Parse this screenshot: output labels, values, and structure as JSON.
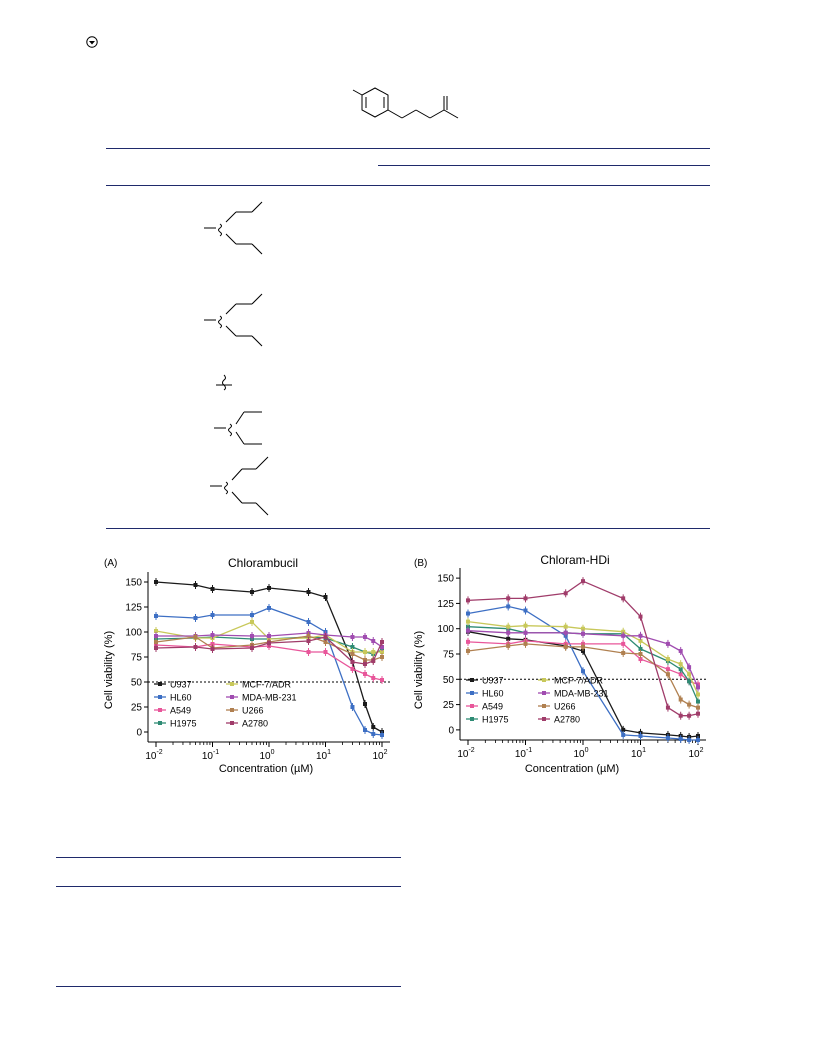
{
  "charts": [
    {
      "panel": "(A)",
      "title": "Chlorambucil",
      "xlabel": "Concentration (µM)",
      "ylabel": "Cell viability (%)"
    },
    {
      "panel": "(B)",
      "title": "Chloram-HDi",
      "xlabel": "Concentration (µM)",
      "ylabel": "Cell viability (%)"
    }
  ],
  "legend": [
    "U937",
    "MCF-7/ADR",
    "HL60",
    "MDA-MB-231",
    "A549",
    "U266",
    "H1975",
    "A2780"
  ],
  "colors": {
    "U937": "#1a1a1a",
    "HL60": "#3d6fc4",
    "A549": "#e8569a",
    "H1975": "#2e8b74",
    "MCF-7/ADR": "#c8c85a",
    "MDA-MB-231": "#a04cb0",
    "U266": "#b08050",
    "A2780": "#a03c6a",
    "rule": "#1f2a6b"
  },
  "chart_data": [
    {
      "type": "line",
      "title": "Chlorambucil",
      "xlabel": "Concentration (µM)",
      "ylabel": "Cell viability (%)",
      "x_scale": "log",
      "xlim": [
        0.01,
        100
      ],
      "ylim": [
        -10,
        160
      ],
      "y_ticks": [
        0,
        25,
        50,
        75,
        100,
        125,
        150
      ],
      "x_ticks": [
        "10-2",
        "10-1",
        "100",
        "101",
        "102"
      ],
      "reference_line": 50,
      "x": [
        0.01,
        0.05,
        0.1,
        0.5,
        1,
        5,
        10,
        30,
        50,
        70,
        100
      ],
      "series": [
        {
          "name": "U937",
          "values": [
            150,
            147,
            143,
            140,
            144,
            140,
            135,
            70,
            28,
            5,
            0
          ]
        },
        {
          "name": "HL60",
          "values": [
            116,
            114,
            117,
            117,
            124,
            110,
            100,
            25,
            2,
            -2,
            -3
          ]
        },
        {
          "name": "A549",
          "values": [
            87,
            85,
            88,
            85,
            86,
            80,
            80,
            63,
            58,
            54,
            52
          ]
        },
        {
          "name": "H1975",
          "values": [
            93,
            94,
            95,
            93,
            93,
            95,
            94,
            85,
            80,
            78,
            82
          ]
        },
        {
          "name": "MCF-7/ADR",
          "values": [
            101,
            94,
            94,
            110,
            93,
            94,
            97,
            80,
            80,
            80,
            80
          ]
        },
        {
          "name": "MDA-MB-231",
          "values": [
            96,
            96,
            97,
            96,
            96,
            99,
            97,
            95,
            95,
            91,
            85
          ]
        },
        {
          "name": "U266",
          "values": [
            90,
            95,
            84,
            87,
            90,
            96,
            90,
            78,
            72,
            72,
            75
          ]
        },
        {
          "name": "A2780",
          "values": [
            84,
            85,
            83,
            84,
            89,
            91,
            95,
            70,
            68,
            71,
            90
          ]
        }
      ]
    },
    {
      "type": "line",
      "title": "Chloram-HDi",
      "xlabel": "Concentration (µM)",
      "ylabel": "Cell viability (%)",
      "x_scale": "log",
      "xlim": [
        0.01,
        100
      ],
      "ylim": [
        -10,
        160
      ],
      "y_ticks": [
        0,
        25,
        50,
        75,
        100,
        125,
        150
      ],
      "x_ticks": [
        "10-2",
        "10-1",
        "100",
        "101",
        "102"
      ],
      "reference_line": 50,
      "x": [
        0.01,
        0.05,
        0.1,
        0.5,
        1,
        5,
        10,
        30,
        50,
        70,
        100
      ],
      "series": [
        {
          "name": "U937",
          "values": [
            97,
            90,
            89,
            83,
            78,
            0,
            -3,
            -5,
            -6,
            -7,
            -6
          ]
        },
        {
          "name": "HL60",
          "values": [
            115,
            122,
            118,
            93,
            58,
            -5,
            -6,
            -8,
            -9,
            -10,
            -10
          ]
        },
        {
          "name": "A549",
          "values": [
            87,
            85,
            88,
            85,
            85,
            85,
            70,
            60,
            55,
            48,
            45
          ]
        },
        {
          "name": "H1975",
          "values": [
            102,
            100,
            96,
            96,
            95,
            95,
            80,
            68,
            60,
            48,
            28
          ]
        },
        {
          "name": "MCF-7/ADR",
          "values": [
            107,
            102,
            103,
            102,
            100,
            97,
            88,
            70,
            65,
            55,
            35
          ]
        },
        {
          "name": "MDA-MB-231",
          "values": [
            98,
            96,
            96,
            96,
            95,
            93,
            93,
            85,
            78,
            62,
            42
          ]
        },
        {
          "name": "U266",
          "values": [
            78,
            83,
            85,
            82,
            82,
            76,
            75,
            55,
            30,
            25,
            22
          ]
        },
        {
          "name": "A2780",
          "values": [
            128,
            130,
            130,
            135,
            147,
            130,
            112,
            22,
            14,
            14,
            16
          ]
        }
      ]
    }
  ]
}
